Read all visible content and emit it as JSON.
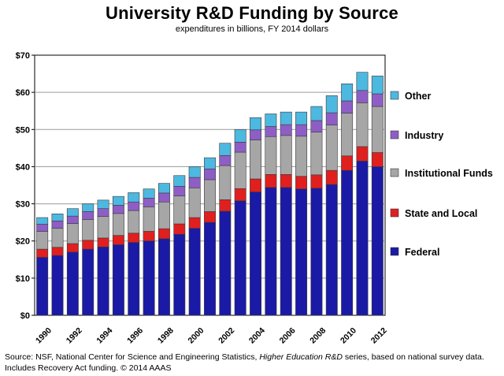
{
  "header": {
    "title": "University R&D Funding by Source",
    "subtitle": "expenditures in billions, FY 2014 dollars"
  },
  "footer": {
    "source_line1_a": "Source: NSF, National Center for Science and Engineering Statistics, ",
    "source_line1_b": "Higher Education R&D",
    "source_line1_c": " series, based on national survey data.",
    "source_line2": "Includes Recovery Act funding. © 2014 AAAS"
  },
  "chart_data": {
    "type": "bar",
    "stacked": true,
    "categories": [
      "1990",
      "1991",
      "1992",
      "1993",
      "1994",
      "1995",
      "1996",
      "1997",
      "1998",
      "1999",
      "2000",
      "2001",
      "2002",
      "2003",
      "2004",
      "2005",
      "2006",
      "2007",
      "2008",
      "2009",
      "2010",
      "2011",
      "2012"
    ],
    "x_tick_labels": [
      "1990",
      "",
      "1992",
      "",
      "1994",
      "",
      "1996",
      "",
      "1998",
      "",
      "2000",
      "",
      "2002",
      "",
      "2004",
      "",
      "2006",
      "",
      "2008",
      "",
      "2010",
      "",
      "2012"
    ],
    "ylim": [
      0,
      70
    ],
    "y_ticks": [
      0,
      10,
      20,
      30,
      40,
      50,
      60,
      70
    ],
    "y_tick_labels": [
      "$0",
      "$10",
      "$20",
      "$30",
      "$40",
      "$50",
      "$60",
      "$70"
    ],
    "grid": true,
    "legend_position": "right",
    "series": [
      {
        "name": "Federal",
        "color": "#1a1aa6",
        "values": [
          15.6,
          16.1,
          17.0,
          17.8,
          18.4,
          19.0,
          19.6,
          20.0,
          20.6,
          21.8,
          23.4,
          25.0,
          28.0,
          30.8,
          33.2,
          34.4,
          34.4,
          34.0,
          34.2,
          35.2,
          39.0,
          41.5,
          40.0
        ]
      },
      {
        "name": "State and Local",
        "color": "#e01f1f",
        "values": [
          2.2,
          2.2,
          2.3,
          2.4,
          2.4,
          2.5,
          2.5,
          2.6,
          2.7,
          2.8,
          2.9,
          2.9,
          3.1,
          3.3,
          3.5,
          3.5,
          3.5,
          3.4,
          3.6,
          3.8,
          3.9,
          3.9,
          3.8
        ]
      },
      {
        "name": "Institutional Funds",
        "color": "#a6a6a6",
        "values": [
          4.8,
          5.1,
          5.4,
          5.6,
          5.8,
          5.9,
          6.1,
          6.6,
          7.2,
          7.5,
          8.0,
          8.6,
          9.2,
          9.8,
          10.5,
          10.2,
          10.5,
          10.8,
          11.5,
          12.2,
          11.5,
          11.8,
          12.4
        ]
      },
      {
        "name": "Industry",
        "color": "#8e5ec6",
        "values": [
          1.9,
          2.0,
          2.0,
          2.1,
          2.1,
          2.2,
          2.3,
          2.3,
          2.4,
          2.6,
          2.8,
          2.9,
          2.7,
          2.7,
          2.7,
          2.7,
          2.9,
          3.1,
          3.1,
          3.3,
          3.3,
          3.3,
          3.4
        ]
      },
      {
        "name": "Other",
        "color": "#4db8e0",
        "values": [
          1.8,
          1.9,
          2.0,
          2.1,
          2.3,
          2.4,
          2.5,
          2.5,
          2.6,
          2.9,
          2.9,
          3.0,
          3.3,
          3.4,
          3.3,
          3.4,
          3.4,
          3.4,
          3.8,
          4.6,
          4.6,
          4.9,
          4.8
        ]
      }
    ],
    "legend_order": [
      "Other",
      "Industry",
      "Institutional Funds",
      "State and Local",
      "Federal"
    ]
  }
}
